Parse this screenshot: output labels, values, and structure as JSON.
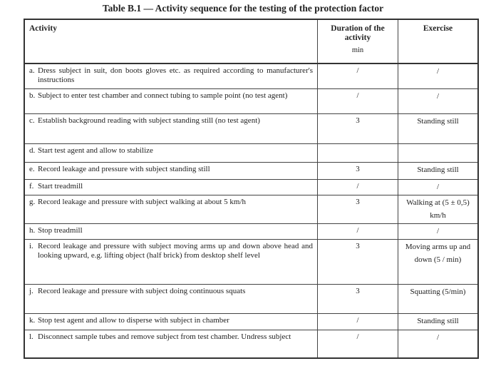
{
  "title": "Table B.1 — Activity sequence for the testing of the protection factor",
  "headers": {
    "activity": "Activity",
    "duration": "Duration of the activity",
    "duration_unit": "min",
    "exercise": "Exercise"
  },
  "rows": [
    {
      "label": "a.",
      "activity": "Dress subject in suit, don boots gloves etc. as required according to manufacturer's instructions",
      "duration": "/",
      "exercise": "/"
    },
    {
      "label": "b.",
      "activity": "Subject to enter test chamber and connect tubing to sample point (no test agent)",
      "duration": "/",
      "exercise": "/"
    },
    {
      "label": "c.",
      "activity": "Establish background reading with subject standing still (no test agent)",
      "duration": "3",
      "exercise": "Standing still"
    },
    {
      "label": "d.",
      "activity": "Start test agent and allow to stabilize",
      "duration": "",
      "exercise": ""
    },
    {
      "label": "e.",
      "activity": "Record leakage and pressure with subject standing still",
      "duration": "3",
      "exercise": "Standing still"
    },
    {
      "label": "f.",
      "activity": "Start treadmill",
      "duration": "/",
      "exercise": "/"
    },
    {
      "label": "g.",
      "activity": "Record leakage and pressure with subject walking at about 5 km/h",
      "duration": "3",
      "exercise": "Walking at (5 ± 0,5) km/h"
    },
    {
      "label": "h.",
      "activity": "Stop treadmill",
      "duration": "/",
      "exercise": "/"
    },
    {
      "label": "i.",
      "activity": "Record leakage and pressure with subject moving arms up and down above head and looking upward, e.g. lifting object (half brick) from desktop shelf level",
      "duration": "3",
      "exercise": "Moving arms up and down (5 / min)"
    },
    {
      "label": "j.",
      "activity": "Record leakage and pressure with subject doing continuous squats",
      "duration": "3",
      "exercise": "Squatting (5/min)"
    },
    {
      "label": "k.",
      "activity": "Stop test agent and allow to disperse with subject in chamber",
      "duration": "/",
      "exercise": "Standing still"
    },
    {
      "label": "l.",
      "activity": "Disconnect sample tubes and remove subject from test chamber. Undress subject",
      "duration": "/",
      "exercise": "/"
    }
  ]
}
